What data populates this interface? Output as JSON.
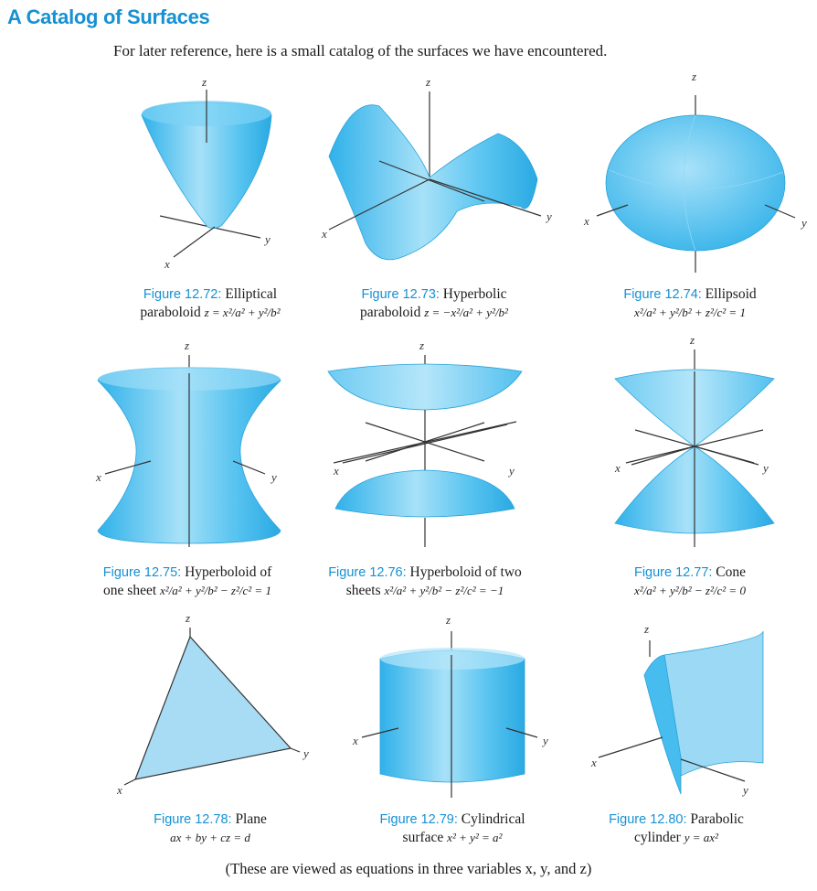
{
  "title": "A Catalog of Surfaces",
  "intro": "For later reference, here is a small catalog of the surfaces we have encountered.",
  "axis_labels": {
    "x": "x",
    "y": "y",
    "z": "z"
  },
  "colors": {
    "accent": "#1591d4",
    "surface": "#5cc4f0",
    "surface_light": "#b7e6fa",
    "plane": "#a8dcf5"
  },
  "figures": [
    {
      "number": "Figure 12.72:",
      "caption": "Elliptical",
      "caption2": "paraboloid",
      "equation": "z = x²/a² + y²/b²"
    },
    {
      "number": "Figure 12.73:",
      "caption": "Hyperbolic",
      "caption2": "paraboloid",
      "equation": "z = −x²/a² + y²/b²"
    },
    {
      "number": "Figure 12.74:",
      "caption": "Ellipsoid",
      "caption2": "",
      "equation": "x²/a² + y²/b² + z²/c² = 1"
    },
    {
      "number": "Figure 12.75:",
      "caption": "Hyperboloid of",
      "caption2": "one sheet",
      "equation": "x²/a² + y²/b² − z²/c² = 1"
    },
    {
      "number": "Figure 12.76:",
      "caption": "Hyperboloid of two",
      "caption2": "sheets",
      "equation": "x²/a² + y²/b² − z²/c² = −1"
    },
    {
      "number": "Figure 12.77:",
      "caption": "Cone",
      "caption2": "",
      "equation": "x²/a² + y²/b² − z²/c² = 0"
    },
    {
      "number": "Figure 12.78:",
      "caption": "Plane",
      "caption2": "",
      "equation": "ax + by + cz = d"
    },
    {
      "number": "Figure 12.79:",
      "caption": "Cylindrical",
      "caption2": "surface",
      "equation": "x² + y² = a²"
    },
    {
      "number": "Figure 12.80:",
      "caption": "Parabolic",
      "caption2": "cylinder",
      "equation": "y = ax²"
    }
  ],
  "footer": "(These are viewed as equations in three variables x, y, and z)"
}
